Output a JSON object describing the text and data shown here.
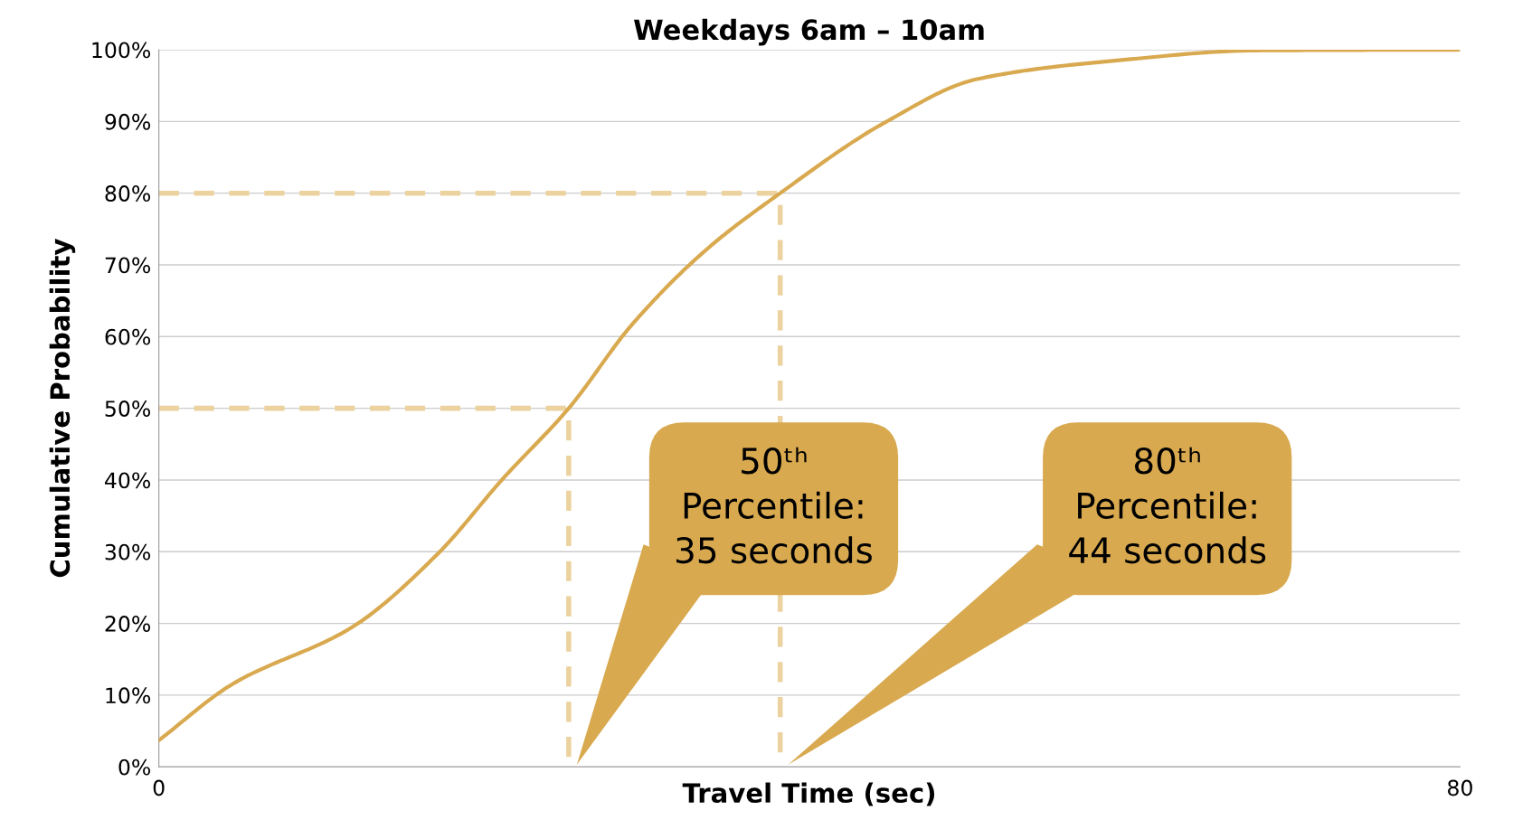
{
  "chart_data": {
    "type": "line",
    "title": "Weekdays 6am – 10am",
    "xlabel": "Travel Time (sec)",
    "ylabel": "Cumulative Probability",
    "xlim": [
      0,
      80
    ],
    "xticks": [
      0,
      80
    ],
    "ylim": [
      0,
      100
    ],
    "yticks": [
      {
        "value": 0,
        "label": "0%"
      },
      {
        "value": 10,
        "label": "10%"
      },
      {
        "value": 20,
        "label": "20%"
      },
      {
        "value": 30,
        "label": "30%"
      },
      {
        "value": 40,
        "label": "40%"
      },
      {
        "value": 50,
        "label": "50%"
      },
      {
        "value": 60,
        "label": "60%"
      },
      {
        "value": 70,
        "label": "70%"
      },
      {
        "value": 80,
        "label": "80%"
      },
      {
        "value": 90,
        "label": "90%"
      },
      {
        "value": 100,
        "label": "100%"
      }
    ],
    "grid": "y",
    "marker": "none",
    "series": [
      {
        "color": "#d9a94f",
        "line_style": "solid",
        "x": [
          0,
          4.5,
          11.9,
          17.1,
          21.2,
          25.2,
          29.1,
          33.7,
          38.2,
          44.6,
          50.3,
          58.9,
          67.5,
          80
        ],
        "values": [
          3.7,
          11.5,
          19.5,
          29.6,
          40.3,
          50,
          61.7,
          72.2,
          80,
          89.8,
          95.9,
          98.5,
          99.9,
          100
        ]
      },
      {
        "color": "#ecd29f",
        "line_style": "dashed",
        "x": [
          0,
          25.2,
          25.2
        ],
        "values": [
          50,
          50,
          0
        ]
      },
      {
        "color": "#ecd29f",
        "line_style": "dashed",
        "x": [
          0,
          38.2,
          38.2
        ],
        "values": [
          80,
          80,
          0
        ]
      }
    ],
    "annotations": [
      "50ᵗʰ\nPercentile:\n35 seconds",
      "80ᵗʰ\nPercentile:\n44 seconds"
    ]
  }
}
